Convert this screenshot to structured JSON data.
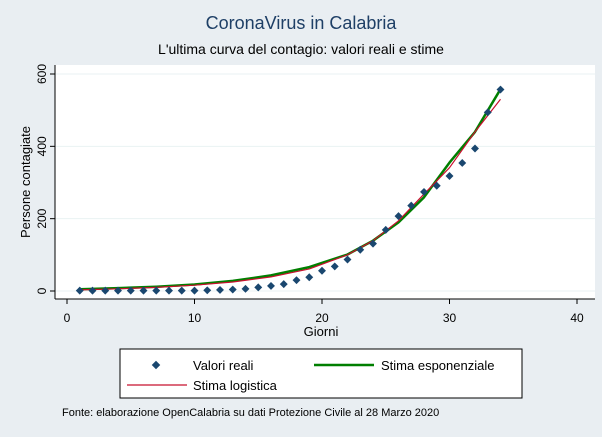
{
  "chart_data": {
    "type": "scatter",
    "title": "CoronaVirus in Calabria",
    "subtitle": "L'ultima curva del contagio: valori reali e stime",
    "xlabel": "Giorni",
    "ylabel": "Persone contagiate",
    "xlim": [
      0,
      40
    ],
    "ylim": [
      0,
      600
    ],
    "xticks": [
      "0",
      "10",
      "20",
      "30",
      "40"
    ],
    "yticks": [
      "0",
      "200",
      "400",
      "600"
    ],
    "grid": "horizontal",
    "legend_position": "bottom",
    "note": "Fonte: elaborazione OpenCalabria su dati Protezione Civile al 28 Marzo 2020",
    "series": [
      {
        "name": "Valori reali",
        "kind": "scatter",
        "color": "#1a476f",
        "x": [
          1,
          2,
          3,
          4,
          5,
          6,
          7,
          8,
          9,
          10,
          11,
          12,
          13,
          14,
          15,
          16,
          17,
          18,
          19,
          20,
          21,
          22,
          23,
          24,
          25,
          26,
          27,
          28,
          29,
          30,
          31,
          32,
          33,
          34
        ],
        "y": [
          1,
          1,
          1,
          1,
          1,
          1,
          1,
          1,
          1,
          1,
          2,
          3,
          4,
          6,
          10,
          14,
          19,
          30,
          38,
          56,
          68,
          87,
          114,
          131,
          169,
          207,
          236,
          274,
          291,
          318,
          354,
          394,
          494,
          557
        ]
      },
      {
        "name": "Stima esponenziale",
        "kind": "line",
        "color": "#007f00",
        "x": [
          1,
          4,
          7,
          10,
          13,
          16,
          19,
          22,
          24,
          26,
          28,
          30,
          32,
          34
        ],
        "y": [
          5,
          8,
          12,
          18,
          28,
          43,
          66,
          101,
          139,
          190,
          259,
          355,
          440,
          558
        ]
      },
      {
        "name": "Stima logistica",
        "kind": "line",
        "color": "#c8102e",
        "x": [
          1,
          4,
          7,
          10,
          13,
          16,
          19,
          22,
          24,
          26,
          28,
          30,
          32,
          34
        ],
        "y": [
          3,
          6,
          10,
          16,
          25,
          39,
          61,
          100,
          139,
          194,
          268,
          341,
          440,
          530
        ]
      }
    ]
  }
}
